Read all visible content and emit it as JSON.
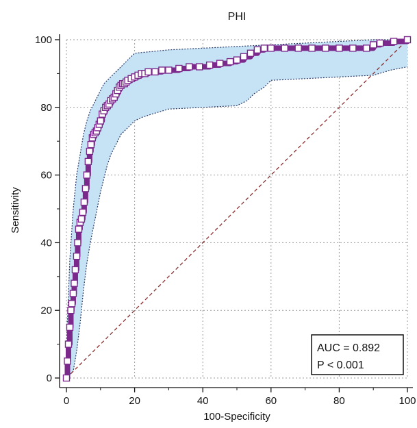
{
  "chart_data": {
    "type": "line",
    "title": "PHI",
    "xlabel": "100-Specificity",
    "ylabel": "Sensitivity",
    "xlim": [
      0,
      100
    ],
    "ylim": [
      0,
      100
    ],
    "xticks": [
      0,
      20,
      40,
      60,
      80,
      100
    ],
    "yticks": [
      0,
      20,
      40,
      60,
      80,
      100
    ],
    "grid": true,
    "reference_line": {
      "x": [
        0,
        100
      ],
      "y": [
        0,
        100
      ],
      "style": "dashed",
      "color": "#8b2d2d"
    },
    "roc_curve": {
      "color": "#7b2a8c",
      "marker": "square",
      "x": [
        0,
        0.3,
        0.6,
        1,
        1.3,
        1.6,
        2,
        2.3,
        2.6,
        3,
        3.3,
        3.6,
        4,
        4.4,
        4.8,
        5.2,
        5.6,
        6,
        6.4,
        6.8,
        7.2,
        7.6,
        8,
        8.4,
        8.8,
        9.2,
        9.6,
        10,
        10.5,
        11,
        11.5,
        12,
        12.5,
        13,
        13.5,
        14,
        14.5,
        15,
        15.5,
        16,
        16.5,
        17,
        17.5,
        18,
        19,
        20,
        21,
        22,
        23,
        24,
        26,
        28,
        30,
        33,
        36,
        39,
        42,
        45,
        48,
        50,
        52,
        54,
        56,
        58,
        60,
        64,
        68,
        72,
        76,
        80,
        84,
        88,
        90,
        92,
        96,
        100
      ],
      "y": [
        0,
        5,
        10,
        15,
        20,
        22,
        25,
        28,
        32,
        36,
        40,
        44,
        46,
        47,
        49,
        52,
        56,
        60,
        64,
        67,
        69,
        71,
        72,
        72.5,
        73,
        74,
        75,
        76,
        78,
        79,
        80,
        80.5,
        81,
        82,
        82.5,
        83,
        84,
        85,
        86,
        86.5,
        87,
        87,
        87.5,
        88,
        88.5,
        89,
        89.5,
        90,
        90,
        90.5,
        90.5,
        91,
        91,
        91.5,
        92,
        92,
        92.5,
        93,
        93.5,
        94,
        95,
        96,
        97,
        97.5,
        97.5,
        97.5,
        97.5,
        97.5,
        97.5,
        97.5,
        97.5,
        97.5,
        98.5,
        99,
        99.5,
        100
      ]
    },
    "ci_upper": {
      "x": [
        0,
        1,
        2,
        3,
        4,
        5,
        6,
        7,
        8,
        9,
        10,
        11,
        12,
        13,
        14,
        15,
        16,
        17,
        18,
        19,
        20,
        25,
        30,
        40,
        50,
        60,
        70,
        80,
        90,
        100
      ],
      "y": [
        10,
        35,
        50,
        60,
        66,
        72,
        76,
        79,
        81,
        83,
        85,
        87,
        88,
        89,
        90,
        91,
        92,
        93,
        94,
        95,
        96,
        96.5,
        97,
        97.5,
        98,
        98.5,
        99,
        99.5,
        100,
        100
      ]
    },
    "ci_lower": {
      "x": [
        0,
        2,
        3,
        4,
        5,
        6,
        7,
        8,
        9,
        10,
        11,
        12,
        13,
        14,
        15,
        16,
        17,
        18,
        20,
        22,
        25,
        30,
        40,
        50,
        53,
        55,
        58,
        60,
        70,
        80,
        90,
        95,
        100
      ],
      "y": [
        0,
        2,
        8,
        16,
        26,
        34,
        40,
        45,
        50,
        55,
        59,
        63,
        66,
        68,
        70,
        72,
        73,
        74,
        76,
        77,
        78,
        79.5,
        80,
        80.5,
        82,
        84,
        86,
        88,
        88.5,
        89,
        89.5,
        91,
        92
      ]
    },
    "annotations": {
      "auc": "AUC = 0.892",
      "p": "P < 0.001"
    }
  }
}
